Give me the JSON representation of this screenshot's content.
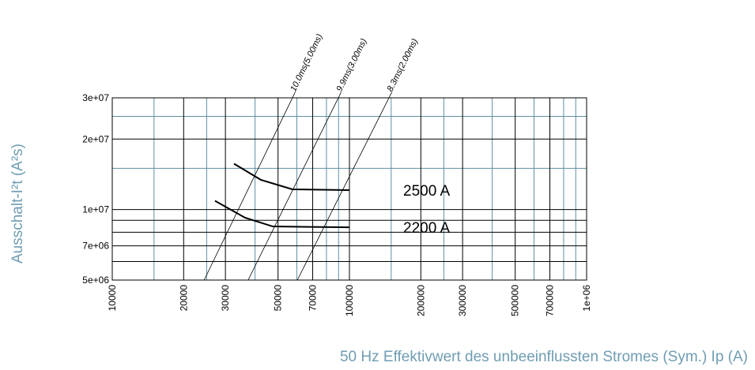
{
  "chart_data": {
    "type": "line",
    "xlabel": "50 Hz Effektivwert des unbeeinflussten Stromes (Sym.) Ip (A)",
    "ylabel": "Ausschalt-I²t (A²s)",
    "log_x": true,
    "log_y": true,
    "grid": true,
    "xlim": [
      10000,
      1000000
    ],
    "ylim": [
      5000000,
      30000000
    ],
    "xticks": [
      10000,
      20000,
      30000,
      50000,
      70000,
      100000,
      200000,
      300000,
      500000,
      700000,
      {
        "value": 1000000,
        "label": "1e+06"
      }
    ],
    "yticks": [
      {
        "value": 5000000,
        "label": "5e+06"
      },
      {
        "value": 7000000,
        "label": "7e+06"
      },
      {
        "value": 10000000,
        "label": "1e+07"
      },
      {
        "value": 20000000,
        "label": "2e+07"
      },
      {
        "value": 30000000,
        "label": "3e+07"
      }
    ],
    "minor_xticks": [
      15000,
      25000,
      40000,
      60000,
      80000,
      90000,
      150000,
      250000,
      400000,
      600000,
      800000,
      900000
    ],
    "minor_yticks": [
      6000000,
      8000000,
      9000000,
      15000000,
      25000000
    ],
    "series": [
      {
        "name": "2500 A",
        "color": "#000000",
        "x": [
          32600,
          42300,
          57500,
          100000
        ],
        "values": [
          15700000,
          13400000,
          12200000,
          12100000
        ]
      },
      {
        "name": "2200 A",
        "color": "#000000",
        "x": [
          27100,
          36300,
          47500,
          100000
        ],
        "values": [
          10900000,
          9230000,
          8470000,
          8400000
        ]
      }
    ],
    "reference_lines": [
      {
        "name": "10.0ms(5.00ms)",
        "color": "#000000",
        "x": [
          24400,
          57500
        ],
        "values": [
          5000000,
          30000000
        ]
      },
      {
        "name": "9.9ms(3.00ms)",
        "color": "#000000",
        "x": [
          37400,
          89800
        ],
        "values": [
          5000000,
          30000000
        ]
      },
      {
        "name": "8.3ms(2.00ms)",
        "color": "#000000",
        "x": [
          60300,
          146800
        ],
        "values": [
          5000000,
          30000000
        ]
      }
    ]
  }
}
